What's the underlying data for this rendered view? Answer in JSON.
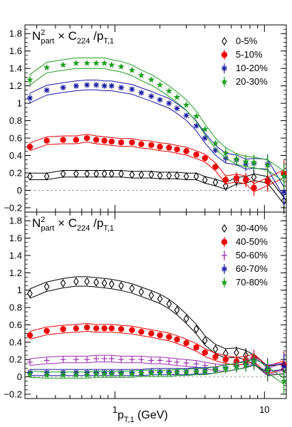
{
  "chart_data": [
    {
      "type": "scatter",
      "x_scale": "log",
      "title_parts": {
        "n": "N",
        "sup": "2",
        "sub": "part",
        "mid": " × C",
        "sub2": "224",
        "slash": " /p",
        "sub3": "T,1"
      },
      "ylim": [
        -0.25,
        1.9
      ],
      "xlim": [
        0.25,
        14
      ],
      "yticks": [
        "−0.2",
        "0",
        "0.2",
        "0.4",
        "0.6",
        "0.8",
        "1",
        "1.2",
        "1.4",
        "1.6",
        "1.8"
      ],
      "ytick_values": [
        -0.2,
        0,
        0.2,
        0.4,
        0.6,
        0.8,
        1,
        1.2,
        1.4,
        1.6,
        1.8
      ],
      "zero_line": true,
      "legend_position": "top-right",
      "series": [
        {
          "name": "0-5%",
          "marker": "diamond-open",
          "color": "#000000",
          "x": [
            0.27,
            0.35,
            0.45,
            0.55,
            0.65,
            0.75,
            0.85,
            0.95,
            1.1,
            1.3,
            1.5,
            1.75,
            2.0,
            2.3,
            2.6,
            3.0,
            3.5,
            4.0,
            4.7,
            5.5,
            6.5,
            7.5,
            8.5,
            10.5,
            13.5
          ],
          "y": [
            0.16,
            0.16,
            0.19,
            0.19,
            0.19,
            0.19,
            0.19,
            0.19,
            0.19,
            0.18,
            0.18,
            0.18,
            0.17,
            0.17,
            0.17,
            0.16,
            0.16,
            0.12,
            0.09,
            0.05,
            0.11,
            0.12,
            0.15,
            0.12,
            -0.12
          ],
          "band": true
        },
        {
          "name": "5-10%",
          "marker": "circle-filled",
          "color": "#ee0000",
          "x": [
            0.27,
            0.35,
            0.45,
            0.55,
            0.65,
            0.75,
            0.85,
            0.95,
            1.1,
            1.3,
            1.5,
            1.75,
            2.0,
            2.3,
            2.6,
            3.0,
            3.5,
            4.0,
            4.7,
            5.5,
            6.5,
            7.5,
            8.5,
            10.5,
            13.5
          ],
          "y": [
            0.5,
            0.57,
            0.58,
            0.58,
            0.6,
            0.58,
            0.57,
            0.56,
            0.55,
            0.55,
            0.53,
            0.52,
            0.5,
            0.49,
            0.47,
            0.45,
            0.41,
            0.37,
            0.27,
            0.12,
            0.14,
            0.12,
            0.03,
            0.1,
            0.19
          ],
          "band": true
        },
        {
          "name": "10-20%",
          "marker": "star-cross",
          "color": "#1a1aa6",
          "x": [
            0.27,
            0.35,
            0.45,
            0.55,
            0.65,
            0.75,
            0.85,
            0.95,
            1.1,
            1.3,
            1.5,
            1.75,
            2.0,
            2.3,
            2.6,
            3.0,
            3.5,
            4.0,
            4.7,
            5.5,
            6.5,
            7.5,
            8.5,
            10.5,
            13.5
          ],
          "y": [
            1.06,
            1.15,
            1.18,
            1.2,
            1.21,
            1.21,
            1.2,
            1.2,
            1.18,
            1.16,
            1.12,
            1.08,
            1.04,
            1.0,
            0.94,
            0.86,
            0.74,
            0.6,
            0.46,
            0.37,
            0.35,
            0.3,
            0.31,
            0.3,
            -0.02
          ],
          "band": true
        },
        {
          "name": "20-30%",
          "marker": "star-filled",
          "color": "#1e9e1e",
          "x": [
            0.27,
            0.35,
            0.45,
            0.55,
            0.65,
            0.75,
            0.85,
            0.95,
            1.1,
            1.3,
            1.5,
            1.75,
            2.0,
            2.3,
            2.6,
            3.0,
            3.5,
            4.0,
            4.7,
            5.5,
            6.5,
            7.5,
            8.5,
            10.5,
            13.5
          ],
          "y": [
            1.27,
            1.41,
            1.44,
            1.46,
            1.46,
            1.46,
            1.46,
            1.44,
            1.42,
            1.38,
            1.32,
            1.27,
            1.21,
            1.14,
            1.07,
            0.98,
            0.85,
            0.7,
            0.54,
            0.43,
            0.36,
            0.33,
            0.32,
            0.29,
            0.16
          ],
          "band": true
        }
      ]
    },
    {
      "type": "scatter",
      "x_scale": "log",
      "title_parts": {
        "n": "N",
        "sup": "2",
        "sub": "part",
        "mid": " × C",
        "sub2": "224",
        "slash": " /p",
        "sub3": "T,1"
      },
      "ylim": [
        -0.25,
        1.9
      ],
      "xlim": [
        0.25,
        14
      ],
      "yticks": [
        "−0.2",
        "0",
        "0.2",
        "0.4",
        "0.6",
        "0.8",
        "1",
        "1.2",
        "1.4",
        "1.6",
        "1.8"
      ],
      "ytick_values": [
        -0.2,
        0,
        0.2,
        0.4,
        0.6,
        0.8,
        1,
        1.2,
        1.4,
        1.6,
        1.8
      ],
      "xticks": [
        "1",
        "10"
      ],
      "xtick_values": [
        1,
        10
      ],
      "xlabel_parts": {
        "p": "p",
        "sub": "T,1",
        "unit": " (GeV)"
      },
      "zero_line": true,
      "legend_position": "top-right",
      "series": [
        {
          "name": "30-40%",
          "marker": "diamond-open",
          "color": "#000000",
          "x": [
            0.27,
            0.35,
            0.45,
            0.55,
            0.65,
            0.75,
            0.85,
            0.95,
            1.1,
            1.3,
            1.5,
            1.75,
            2.0,
            2.3,
            2.6,
            3.0,
            3.5,
            4.0,
            4.7,
            5.5,
            6.5,
            7.5,
            8.5,
            10.5,
            13.5
          ],
          "y": [
            0.96,
            1.04,
            1.08,
            1.1,
            1.1,
            1.09,
            1.08,
            1.07,
            1.05,
            1.02,
            0.98,
            0.94,
            0.9,
            0.84,
            0.77,
            0.67,
            0.55,
            0.42,
            0.32,
            0.27,
            0.28,
            0.25,
            0.2,
            0.07,
            0.09
          ],
          "band": true
        },
        {
          "name": "40-50%",
          "marker": "circle-filled",
          "color": "#ee0000",
          "x": [
            0.27,
            0.35,
            0.45,
            0.55,
            0.65,
            0.75,
            0.85,
            0.95,
            1.1,
            1.3,
            1.5,
            1.75,
            2.0,
            2.3,
            2.6,
            3.0,
            3.5,
            4.0,
            4.7,
            5.5,
            6.5,
            7.5,
            8.5,
            10.5,
            13.5
          ],
          "y": [
            0.48,
            0.53,
            0.55,
            0.56,
            0.57,
            0.56,
            0.56,
            0.56,
            0.55,
            0.54,
            0.52,
            0.5,
            0.48,
            0.46,
            0.43,
            0.39,
            0.34,
            0.28,
            0.23,
            0.2,
            0.18,
            0.19,
            0.22,
            0.08,
            0.14
          ],
          "band": true
        },
        {
          "name": "50-60%",
          "marker": "plus",
          "color": "#9b2fb0",
          "x": [
            0.27,
            0.35,
            0.45,
            0.55,
            0.65,
            0.75,
            0.85,
            0.95,
            1.1,
            1.3,
            1.5,
            1.75,
            2.0,
            2.3,
            2.6,
            3.0,
            3.5,
            4.0,
            4.7,
            5.5,
            6.5,
            7.5,
            8.5,
            10.5,
            13.5
          ],
          "y": [
            0.17,
            0.19,
            0.2,
            0.2,
            0.2,
            0.21,
            0.21,
            0.21,
            0.2,
            0.2,
            0.2,
            0.19,
            0.19,
            0.18,
            0.17,
            0.16,
            0.15,
            0.13,
            0.11,
            0.1,
            0.12,
            0.15,
            0.2,
            0.06,
            0.12
          ],
          "band": true
        },
        {
          "name": "60-70%",
          "marker": "star-cross",
          "color": "#1a1aa6",
          "x": [
            0.27,
            0.35,
            0.45,
            0.55,
            0.65,
            0.75,
            0.85,
            0.95,
            1.1,
            1.3,
            1.5,
            1.75,
            2.0,
            2.3,
            2.6,
            3.0,
            3.5,
            4.0,
            4.7,
            5.5,
            6.5,
            7.5,
            8.5,
            10.5,
            13.5
          ],
          "y": [
            0.05,
            0.05,
            0.05,
            0.05,
            0.05,
            0.05,
            0.05,
            0.05,
            0.05,
            0.05,
            0.05,
            0.06,
            0.06,
            0.06,
            0.06,
            0.06,
            0.07,
            0.07,
            0.08,
            0.1,
            0.12,
            0.14,
            0.17,
            0.1,
            0.12
          ],
          "band": true
        },
        {
          "name": "70-80%",
          "marker": "star-filled",
          "color": "#1e9e1e",
          "x": [
            0.27,
            0.35,
            0.45,
            0.55,
            0.65,
            0.75,
            0.85,
            0.95,
            1.1,
            1.3,
            1.5,
            1.75,
            2.0,
            2.3,
            2.6,
            3.0,
            3.5,
            4.0,
            4.7,
            5.5,
            6.5,
            7.5,
            8.5,
            10.5,
            13.5
          ],
          "y": [
            0.03,
            0.02,
            0.02,
            0.02,
            0.02,
            0.03,
            0.03,
            0.03,
            0.03,
            0.03,
            0.04,
            0.04,
            0.04,
            0.04,
            0.05,
            0.05,
            0.06,
            0.06,
            0.08,
            0.1,
            0.12,
            0.14,
            0.18,
            0.08,
            -0.05
          ],
          "band": true
        }
      ]
    }
  ]
}
